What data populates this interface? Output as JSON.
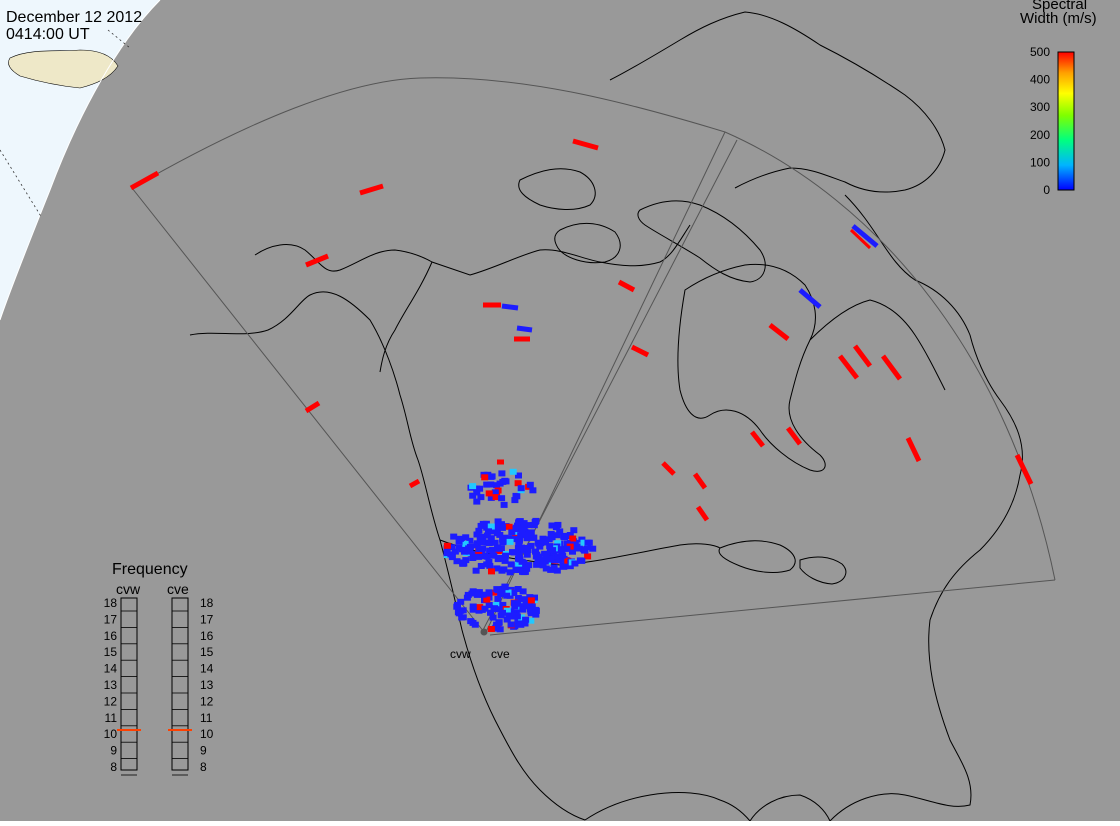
{
  "header": {
    "date": "December 12 2012",
    "time": "0414:00 UT"
  },
  "colors": {
    "background_ocean": "#999999",
    "dayside": "#eef7fd",
    "land": "#999999",
    "coast_line": "#000000",
    "fov_outline": "#444444",
    "terminator": "#ffffff"
  },
  "legend": {
    "title_line1": "Spectral",
    "title_line2": "Width (m/s)",
    "ticks": [
      "500",
      "400",
      "300",
      "200",
      "100",
      "0"
    ],
    "range": [
      0,
      500
    ],
    "colorscale": [
      "#0000ff",
      "#00b4ff",
      "#00ff80",
      "#7fff00",
      "#ffff00",
      "#ffa000",
      "#ff0000"
    ]
  },
  "frequency": {
    "title": "Frequency",
    "radars": [
      {
        "name": "cvw",
        "value_mhz": 10.5
      },
      {
        "name": "cve",
        "value_mhz": 10.5
      }
    ],
    "scale_labels": [
      "18",
      "17",
      "16",
      "15",
      "14",
      "13",
      "12",
      "11",
      "10",
      "9",
      "8"
    ],
    "scale_range": [
      8,
      18
    ],
    "marker_color": "#ff4000"
  },
  "radars": {
    "site_a": "cvw",
    "site_b": "cve"
  },
  "icons": {
    "radar_site": "radar-site-dot-icon"
  }
}
